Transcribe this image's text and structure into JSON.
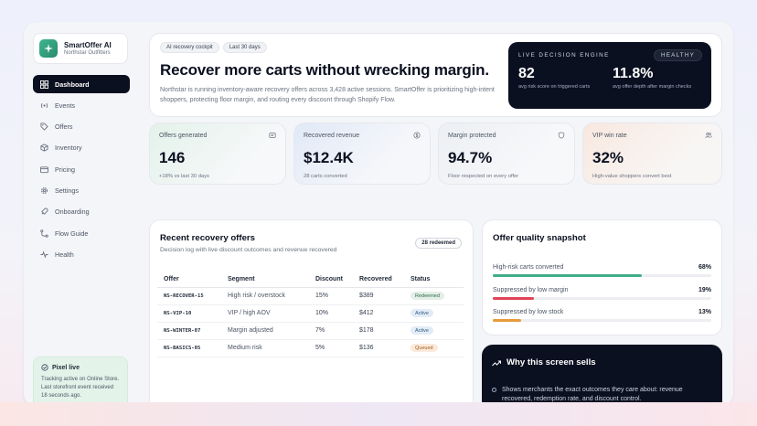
{
  "brand": {
    "name": "SmartOffer AI",
    "store": "Northstar Outfitters"
  },
  "nav": [
    {
      "label": "Dashboard",
      "icon": "grid-icon",
      "active": true
    },
    {
      "label": "Events",
      "icon": "broadcast-icon"
    },
    {
      "label": "Offers",
      "icon": "tag-icon"
    },
    {
      "label": "Inventory",
      "icon": "box-icon"
    },
    {
      "label": "Pricing",
      "icon": "card-icon"
    },
    {
      "label": "Settings",
      "icon": "gear-icon"
    },
    {
      "label": "Onboarding",
      "icon": "rocket-icon"
    },
    {
      "label": "Flow Guide",
      "icon": "flow-icon"
    },
    {
      "label": "Health",
      "icon": "pulse-icon"
    }
  ],
  "pixel": {
    "title": "Pixel live",
    "text": "Tracking active on Online Store. Last storefront event received 18 seconds ago."
  },
  "hero": {
    "chip_cockpit": "AI recovery cockpit",
    "chip_range": "Last 30 days",
    "title": "Recover more carts without wrecking margin.",
    "description": "Northstar is running inventory-aware recovery offers across 3,428 active sessions. SmartOffer is prioritizing high-intent shoppers, protecting floor margin, and routing every discount through Shopify Flow."
  },
  "engine": {
    "label": "LIVE DECISION ENGINE",
    "status": "HEALTHY",
    "metric1_value": "82",
    "metric1_label": "avg risk score on triggered carts",
    "metric2_value": "11.8%",
    "metric2_label": "avg offer depth after margin checks"
  },
  "kpis": [
    {
      "label": "Offers generated",
      "value": "146",
      "note": "+18% vs last 30 days",
      "icon": "message-icon"
    },
    {
      "label": "Recovered revenue",
      "value": "$12.4K",
      "note": "28 carts converted",
      "icon": "dollar-icon"
    },
    {
      "label": "Margin protected",
      "value": "94.7%",
      "note": "Floor respected on every offer",
      "icon": "shield-icon"
    },
    {
      "label": "VIP win rate",
      "value": "32%",
      "note": "High-value shoppers convert best",
      "icon": "users-icon"
    }
  ],
  "offers": {
    "title": "Recent recovery offers",
    "subtitle": "Decision log with live discount outcomes and revenue recovered",
    "badge": "28 redeemed",
    "columns": [
      "Offer",
      "Segment",
      "Discount",
      "Recovered",
      "Status"
    ],
    "rows": [
      {
        "code": "NS-RECOVER-15",
        "segment": "High risk / overstock",
        "discount": "15%",
        "recovered": "$389",
        "status": "Redeemed",
        "status_type": "redeemed"
      },
      {
        "code": "NS-VIP-10",
        "segment": "VIP / high AOV",
        "discount": "10%",
        "recovered": "$412",
        "status": "Active",
        "status_type": "active"
      },
      {
        "code": "NS-WINTER-07",
        "segment": "Margin adjusted",
        "discount": "7%",
        "recovered": "$178",
        "status": "Active",
        "status_type": "active"
      },
      {
        "code": "NS-BASICS-05",
        "segment": "Medium risk",
        "discount": "5%",
        "recovered": "$136",
        "status": "Queued",
        "status_type": "queued"
      }
    ]
  },
  "quality": {
    "title": "Offer quality snapshot",
    "rows": [
      {
        "label": "High-risk carts converted",
        "value": "68%",
        "fraction": 0.68,
        "color": "#3fae86"
      },
      {
        "label": "Suppressed by low margin",
        "value": "19%",
        "fraction": 0.19,
        "color": "#e04458"
      },
      {
        "label": "Suppressed by low stock",
        "value": "13%",
        "fraction": 0.13,
        "color": "#e69a3a"
      }
    ]
  },
  "why": {
    "title": "Why this screen sells",
    "bullet": "Shows merchants the exact outcomes they care about: revenue recovered, redemption rate, and discount control."
  },
  "colors": {
    "primary_dark": "#0b1020",
    "kpi_tints": [
      "#e6f3ec",
      "#e4ebf7",
      "#eef1f4",
      "#f8ebe3"
    ]
  }
}
